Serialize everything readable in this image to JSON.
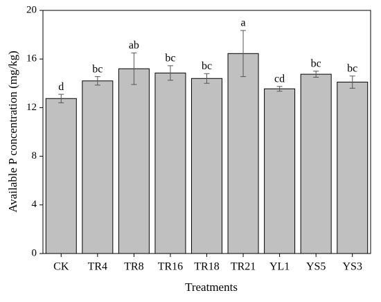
{
  "chart_data": {
    "type": "bar",
    "xlabel": "Treatments",
    "ylabel": "Available P concentration (mg/kg)",
    "categories": [
      "CK",
      "TR4",
      "TR8",
      "TR16",
      "TR18",
      "TR21",
      "YL1",
      "YS5",
      "YS3"
    ],
    "values": [
      12.75,
      14.2,
      15.2,
      14.85,
      14.4,
      16.45,
      13.55,
      14.75,
      14.1
    ],
    "errors": [
      0.35,
      0.35,
      1.3,
      0.6,
      0.4,
      1.9,
      0.2,
      0.25,
      0.5
    ],
    "annotations": [
      "d",
      "bc",
      "ab",
      "bc",
      "bc",
      "a",
      "cd",
      "bc",
      "bc"
    ],
    "color": "#c0c0c0",
    "ylim": [
      0,
      20
    ],
    "yticks": [
      0,
      4,
      8,
      12,
      16,
      20
    ]
  }
}
